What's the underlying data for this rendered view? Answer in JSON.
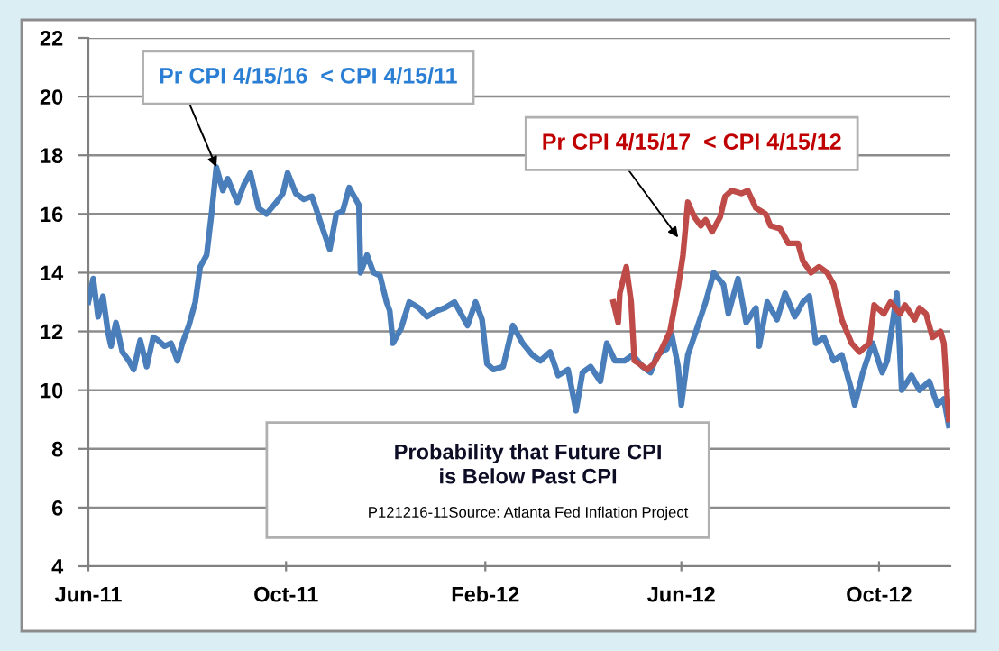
{
  "chart_data": {
    "type": "line",
    "title": "Probability that Future CPI\nis Below Past CPI",
    "xlim": [
      "2011-06-01",
      "2012-11-14"
    ],
    "ylim": [
      4,
      22
    ],
    "yticks": [
      4,
      6,
      8,
      10,
      12,
      14,
      16,
      18,
      20,
      22
    ],
    "xticks": [
      {
        "value": "2011-06-01",
        "label": "Jun-11"
      },
      {
        "value": "2011-10-01",
        "label": "Oct-11"
      },
      {
        "value": "2012-02-01",
        "label": "Feb-12"
      },
      {
        "value": "2012-06-01",
        "label": "Jun-12"
      },
      {
        "value": "2012-10-01",
        "label": "Oct-12"
      }
    ],
    "grid": "y",
    "legend": false,
    "marker": "none",
    "line_style": "solid",
    "annotations": [
      {
        "text": "Pr CPI 4/15/16  < CPI 4/15/11",
        "x": "2011-08-19",
        "y": 17.6
      },
      {
        "text": "Pr CPI 4/15/17  < CPI 4/15/12",
        "x": "2012-05-30",
        "y": 15.2
      },
      "P121216-11Source: Atlanta Fed Inflation Project"
    ],
    "series": [
      {
        "color": "#4a7ebb",
        "x": [
          "2011-06-01",
          "2011-06-04",
          "2011-06-07",
          "2011-06-10",
          "2011-06-13",
          "2011-06-15",
          "2011-06-18",
          "2011-06-22",
          "2011-06-26",
          "2011-06-29",
          "2011-07-03",
          "2011-07-07",
          "2011-07-11",
          "2011-07-14",
          "2011-07-18",
          "2011-07-22",
          "2011-07-26",
          "2011-07-29",
          "2011-08-02",
          "2011-08-06",
          "2011-08-09",
          "2011-08-13",
          "2011-08-16",
          "2011-08-19",
          "2011-08-23",
          "2011-08-26",
          "2011-09-01",
          "2011-09-05",
          "2011-09-09",
          "2011-09-14",
          "2011-09-19",
          "2011-09-25",
          "2011-09-29",
          "2011-10-02",
          "2011-10-07",
          "2011-10-12",
          "2011-10-17",
          "2011-10-23",
          "2011-10-28",
          "2011-11-01",
          "2011-11-05",
          "2011-11-09",
          "2011-11-15",
          "2011-11-16",
          "2011-11-20",
          "2011-11-24",
          "2011-11-28",
          "2011-12-02",
          "2011-12-04",
          "2011-12-06",
          "2011-12-11",
          "2011-12-16",
          "2011-12-22",
          "2011-12-27",
          "2012-01-02",
          "2012-01-07",
          "2012-01-13",
          "2012-01-21",
          "2012-01-26",
          "2012-01-30",
          "2012-02-02",
          "2012-02-06",
          "2012-02-12",
          "2012-02-18",
          "2012-02-24",
          "2012-03-01",
          "2012-03-06",
          "2012-03-12",
          "2012-03-17",
          "2012-03-23",
          "2012-03-28",
          "2012-04-01",
          "2012-04-06",
          "2012-04-12",
          "2012-04-16",
          "2012-04-21",
          "2012-04-27",
          "2012-05-02",
          "2012-05-08",
          "2012-05-13",
          "2012-05-17",
          "2012-05-23",
          "2012-05-26",
          "2012-05-30",
          "2012-06-01",
          "2012-06-05",
          "2012-06-10",
          "2012-06-16",
          "2012-06-21",
          "2012-06-27",
          "2012-06-30",
          "2012-07-06",
          "2012-07-11",
          "2012-07-17",
          "2012-07-19",
          "2012-07-24",
          "2012-07-30",
          "2012-08-04",
          "2012-08-10",
          "2012-08-15",
          "2012-08-19",
          "2012-08-23",
          "2012-08-28",
          "2012-09-03",
          "2012-09-08",
          "2012-09-14",
          "2012-09-16",
          "2012-09-21",
          "2012-09-27",
          "2012-10-03",
          "2012-10-06",
          "2012-10-12",
          "2012-10-15",
          "2012-10-21",
          "2012-10-26",
          "2012-11-01",
          "2012-11-06",
          "2012-11-10",
          "2012-11-13"
        ],
        "values": [
          13.0,
          13.8,
          12.5,
          13.2,
          12.0,
          11.5,
          12.3,
          11.3,
          11.0,
          10.7,
          11.7,
          10.8,
          11.8,
          11.7,
          11.5,
          11.6,
          11.0,
          11.6,
          12.2,
          13.0,
          14.2,
          14.6,
          16.0,
          17.6,
          16.8,
          17.2,
          16.4,
          17.0,
          17.4,
          16.2,
          16.0,
          16.4,
          16.7,
          17.4,
          16.7,
          16.5,
          16.6,
          15.6,
          14.8,
          16.0,
          16.1,
          16.9,
          16.3,
          14.0,
          14.6,
          14.0,
          13.9,
          13.0,
          12.7,
          11.6,
          12.1,
          13.0,
          12.8,
          12.5,
          12.7,
          12.8,
          13.0,
          12.2,
          13.0,
          12.4,
          10.9,
          10.7,
          10.8,
          12.2,
          11.6,
          11.2,
          11.0,
          11.3,
          10.5,
          10.7,
          9.3,
          10.6,
          10.8,
          10.3,
          11.6,
          11.0,
          11.0,
          11.2,
          10.8,
          10.6,
          11.2,
          11.4,
          11.9,
          10.8,
          9.5,
          11.2,
          12.0,
          13.0,
          14.0,
          13.6,
          12.6,
          13.8,
          12.3,
          12.8,
          11.5,
          13.0,
          12.4,
          13.3,
          12.5,
          13.0,
          13.2,
          11.6,
          11.8,
          11.0,
          11.2,
          10.0,
          9.5,
          10.6,
          11.6,
          10.6,
          11.0,
          13.3,
          10.0,
          10.5,
          10.0,
          10.3,
          9.5,
          9.7,
          8.8
        ]
      },
      {
        "color": "#be4b48",
        "x": [
          "2012-04-20",
          "2012-04-23",
          "2012-04-24",
          "2012-04-28",
          "2012-05-01",
          "2012-05-03",
          "2012-05-06",
          "2012-05-11",
          "2012-05-15",
          "2012-05-19",
          "2012-05-25",
          "2012-05-30",
          "2012-06-02",
          "2012-06-05",
          "2012-06-09",
          "2012-06-13",
          "2012-06-16",
          "2012-06-20",
          "2012-06-25",
          "2012-06-28",
          "2012-07-02",
          "2012-07-08",
          "2012-07-12",
          "2012-07-17",
          "2012-07-23",
          "2012-07-26",
          "2012-08-01",
          "2012-08-06",
          "2012-08-12",
          "2012-08-15",
          "2012-08-20",
          "2012-08-25",
          "2012-08-30",
          "2012-09-03",
          "2012-09-08",
          "2012-09-14",
          "2012-09-19",
          "2012-09-25",
          "2012-09-28",
          "2012-10-04",
          "2012-10-08",
          "2012-10-14",
          "2012-10-17",
          "2012-10-23",
          "2012-10-26",
          "2012-10-30",
          "2012-11-03",
          "2012-11-08",
          "2012-11-10",
          "2012-11-13"
        ],
        "values": [
          13.0,
          12.3,
          13.3,
          14.2,
          13.0,
          11.0,
          10.9,
          10.7,
          10.9,
          11.3,
          12.0,
          13.5,
          14.6,
          16.4,
          15.9,
          15.6,
          15.8,
          15.4,
          15.9,
          16.6,
          16.8,
          16.7,
          16.8,
          16.2,
          16.0,
          15.6,
          15.5,
          15.0,
          15.0,
          14.4,
          14.0,
          14.2,
          14.0,
          13.6,
          12.4,
          11.6,
          11.3,
          11.6,
          12.9,
          12.6,
          13.0,
          12.6,
          12.9,
          12.4,
          12.8,
          12.6,
          11.8,
          12.0,
          11.6,
          9.0
        ]
      }
    ]
  }
}
